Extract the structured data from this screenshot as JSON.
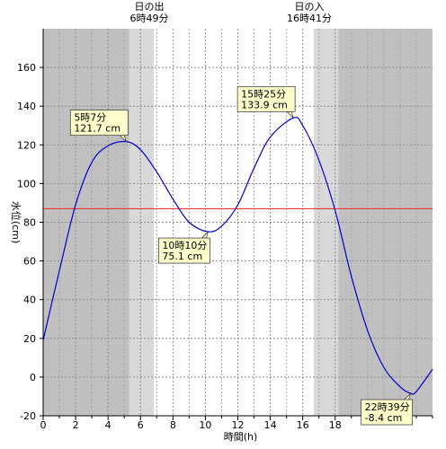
{
  "chart_data": {
    "type": "line",
    "title": "",
    "xlabel": "時間(h)",
    "ylabel": "水位(cm)",
    "xlim": [
      0,
      24
    ],
    "ylim": [
      -20,
      180
    ],
    "x_ticks": [
      0,
      2,
      4,
      6,
      8,
      10,
      12,
      14,
      16,
      18
    ],
    "y_ticks": [
      -20,
      0,
      20,
      40,
      60,
      80,
      100,
      120,
      140,
      160
    ],
    "grid": true,
    "reference_line": {
      "value": 87,
      "color": "#e53935"
    },
    "sunrise": {
      "label": "日の出",
      "time_text": "6時49分",
      "hour": 6.817
    },
    "sunset": {
      "label": "日の入",
      "time_text": "16時41分",
      "hour": 16.683
    },
    "twilight_hours": {
      "morning": [
        5.3,
        6.817
      ],
      "evening": [
        16.683,
        18.2
      ]
    },
    "series": [
      {
        "color": "#0000cc",
        "points": [
          [
            0,
            19
          ],
          [
            1,
            55
          ],
          [
            2,
            89
          ],
          [
            3,
            111
          ],
          [
            4,
            119.5
          ],
          [
            5.117,
            121.7
          ],
          [
            6,
            117.5
          ],
          [
            7,
            106
          ],
          [
            8,
            92
          ],
          [
            9,
            80
          ],
          [
            10.167,
            75.1
          ],
          [
            11,
            78
          ],
          [
            12,
            89
          ],
          [
            13,
            108
          ],
          [
            14,
            124
          ],
          [
            15.417,
            133.9
          ],
          [
            16,
            130
          ],
          [
            17,
            112
          ],
          [
            18,
            86
          ],
          [
            19,
            52
          ],
          [
            20,
            24
          ],
          [
            21,
            5
          ],
          [
            22,
            -5
          ],
          [
            22.65,
            -8.4
          ],
          [
            23,
            -7.5
          ],
          [
            24,
            4
          ]
        ]
      }
    ],
    "annotations": [
      {
        "line1": "5時7分",
        "line2": "121.7 cm",
        "x": 5.117,
        "y": 121.7,
        "kind": "high"
      },
      {
        "line1": "10時10分",
        "line2": "75.1 cm",
        "x": 10.167,
        "y": 75.1,
        "kind": "low"
      },
      {
        "line1": "15時25分",
        "line2": "133.9 cm",
        "x": 15.417,
        "y": 133.9,
        "kind": "high"
      },
      {
        "line1": "22時39分",
        "line2": "-8.4 cm",
        "x": 22.65,
        "y": -8.4,
        "kind": "low"
      }
    ],
    "colors": {
      "night": "#c0c0c0",
      "twilight": "#d9d9d9",
      "day": "#ffffff",
      "callout_fill": "#ffffcc"
    }
  }
}
